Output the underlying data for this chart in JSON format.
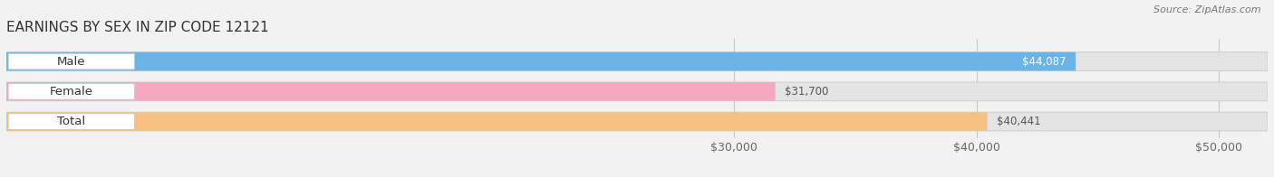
{
  "title": "EARNINGS BY SEX IN ZIP CODE 12121",
  "source": "Source: ZipAtlas.com",
  "categories": [
    "Male",
    "Female",
    "Total"
  ],
  "values": [
    44087,
    31700,
    40441
  ],
  "bar_colors": [
    "#6ab4e8",
    "#f5a8c0",
    "#f5c080"
  ],
  "xlim_min": 0,
  "xlim_max": 52000,
  "xaxis_min": 29000,
  "xticks": [
    30000,
    40000,
    50000
  ],
  "xtick_labels": [
    "$30,000",
    "$40,000",
    "$50,000"
  ],
  "background_color": "#f2f2f2",
  "bar_background_color": "#e4e4e4",
  "label_box_color": "#ffffff",
  "title_fontsize": 11,
  "tick_fontsize": 9,
  "cat_fontsize": 9.5,
  "val_fontsize": 8.5,
  "source_fontsize": 8
}
